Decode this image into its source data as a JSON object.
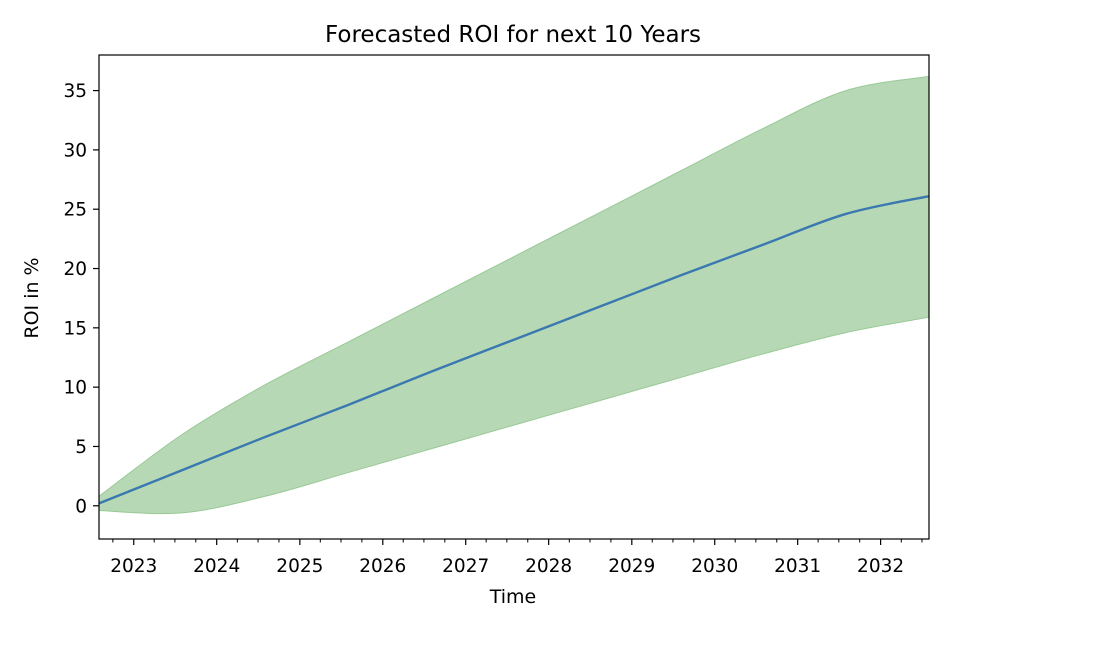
{
  "chart_data": {
    "type": "line",
    "title": "Forecasted ROI for next 10 Years",
    "xlabel": "Time",
    "ylabel": "ROI in %",
    "xlim": [
      "2022-08-01",
      "2032-08-01"
    ],
    "ylim": [
      -2.8,
      38
    ],
    "x_tick_labels": [
      "2023",
      "2024",
      "2025",
      "2026",
      "2027",
      "2028",
      "2029",
      "2030",
      "2031",
      "2032"
    ],
    "y_tick_labels": [
      "0",
      "5",
      "10",
      "15",
      "20",
      "25",
      "30",
      "35"
    ],
    "x": [
      "2022-08-01",
      "2023-08-01",
      "2024-08-01",
      "2025-08-01",
      "2026-08-01",
      "2027-08-01",
      "2028-08-01",
      "2029-08-01",
      "2030-08-01",
      "2031-08-01",
      "2032-08-01"
    ],
    "series": [
      {
        "values": [
          0.2,
          3.0,
          5.8,
          8.5,
          11.3,
          14.0,
          16.7,
          19.4,
          22.0,
          24.6,
          26.1
        ]
      },
      {
        "type": "band",
        "lower": [
          -0.4,
          -0.6,
          0.8,
          2.8,
          4.8,
          6.8,
          8.8,
          10.8,
          12.8,
          14.6,
          15.9
        ],
        "upper": [
          0.8,
          6.0,
          10.2,
          13.8,
          17.4,
          21.0,
          24.6,
          28.2,
          31.8,
          35.0,
          36.2
        ]
      }
    ],
    "colors": {
      "line": "#3a78b0",
      "band": "#b7d8b5",
      "band_edge": "#98c996"
    },
    "grid": false,
    "legend": "none"
  }
}
